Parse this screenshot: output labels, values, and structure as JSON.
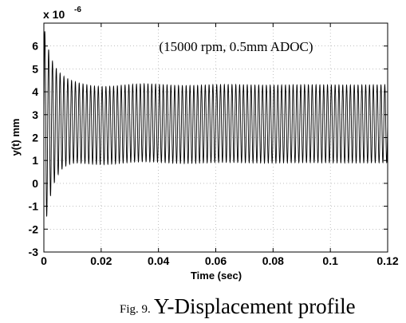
{
  "chart_data": {
    "type": "line",
    "title": "",
    "xlabel": "Time (sec)",
    "ylabel": "y(t) mm",
    "y_exponent_label": "x 10",
    "y_exponent_power": "-6",
    "annotation": "(15000 rpm, 0.5mm ADOC)",
    "xlim": [
      0,
      0.12
    ],
    "ylim": [
      -3,
      7
    ],
    "x_ticks": [
      "0",
      "0.02",
      "0.04",
      "0.06",
      "0.08",
      "0.1",
      "0.12"
    ],
    "y_ticks": [
      "-3",
      "-2",
      "-1",
      "0",
      "1",
      "2",
      "3",
      "4",
      "5",
      "6"
    ],
    "grid": true,
    "series": [
      {
        "signal": "damped oscillation settling to steady-state",
        "steady_mean": 2.6,
        "steady_amplitude": 1.7,
        "initial_max": 6.9,
        "initial_min": -2.4,
        "frequency_hz": 750,
        "decay_time_s": 0.003,
        "start": 0,
        "end": 0.12
      }
    ]
  },
  "caption": {
    "number": "Fig. 9.",
    "title": "Y-Displacement profile"
  }
}
